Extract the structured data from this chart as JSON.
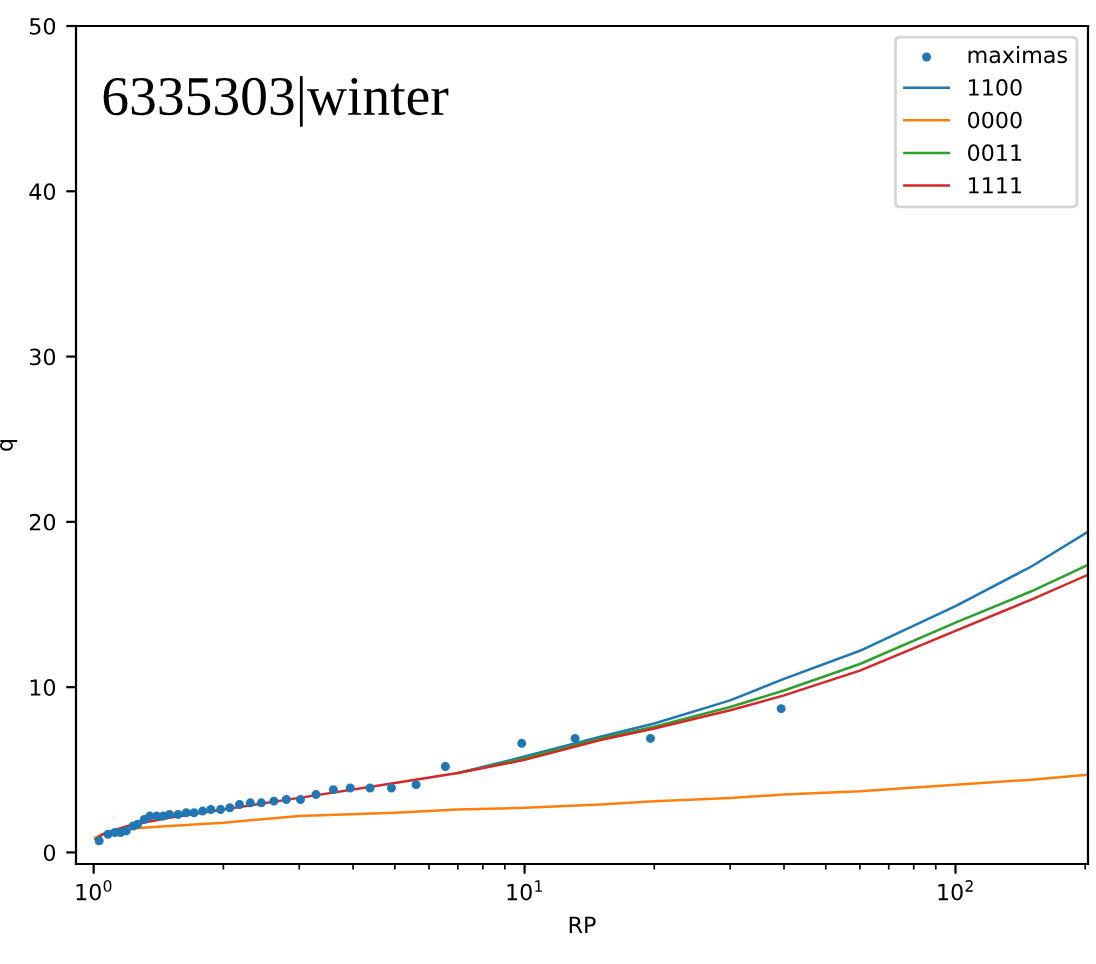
{
  "chart_data": {
    "type": "line",
    "xlabel": "RP",
    "ylabel": "q",
    "log": "x",
    "xlim": [
      0.91,
      203
    ],
    "xticks": [
      {
        "value": 1,
        "label": "10$^{0}$"
      },
      {
        "value": 10,
        "label": "10$^{1}$"
      },
      {
        "value": 100,
        "label": "10$^{2}$"
      }
    ],
    "ylim": [
      -0.7,
      50
    ],
    "yticks": [
      0,
      10,
      20,
      30,
      40,
      50
    ],
    "grid": false,
    "legend": "top right",
    "annotations": [
      "6335303|winter"
    ],
    "series": [
      {
        "name": "maximas",
        "type": "scatter",
        "marker": "circle",
        "color": "#1f77b4",
        "x": [
          1.03,
          1.08,
          1.12,
          1.155,
          1.19,
          1.235,
          1.265,
          1.31,
          1.35,
          1.4,
          1.45,
          1.5,
          1.57,
          1.64,
          1.71,
          1.79,
          1.87,
          1.97,
          2.07,
          2.18,
          2.31,
          2.45,
          2.62,
          2.8,
          3.02,
          3.28,
          3.6,
          3.94,
          4.38,
          4.91,
          5.6,
          6.55,
          9.85,
          13.1,
          19.6,
          39.4
        ],
        "values": [
          0.7,
          1.1,
          1.2,
          1.2,
          1.3,
          1.6,
          1.7,
          2.0,
          2.2,
          2.2,
          2.2,
          2.3,
          2.3,
          2.4,
          2.4,
          2.5,
          2.6,
          2.6,
          2.7,
          2.9,
          3.0,
          3.0,
          3.1,
          3.2,
          3.2,
          3.5,
          3.8,
          3.9,
          3.9,
          3.9,
          4.1,
          5.2,
          6.6,
          6.9,
          6.9,
          8.7
        ]
      },
      {
        "name": "1100",
        "color": "#1f77b4",
        "x": [
          7,
          10,
          15,
          20,
          30,
          40,
          60,
          100,
          150,
          203
        ],
        "values": [
          4.8,
          5.8,
          7.0,
          7.8,
          9.2,
          10.5,
          12.2,
          14.9,
          17.3,
          19.4
        ]
      },
      {
        "name": "0000",
        "color": "#ff7f0e",
        "x": [
          1.01,
          1.05,
          1.1,
          1.2,
          1.3,
          1.5,
          2,
          3,
          5,
          7,
          10,
          15,
          20,
          30,
          40,
          60,
          100,
          150,
          203
        ],
        "values": [
          0.9,
          1.1,
          1.2,
          1.4,
          1.5,
          1.6,
          1.8,
          2.2,
          2.4,
          2.6,
          2.7,
          2.9,
          3.1,
          3.3,
          3.5,
          3.7,
          4.1,
          4.4,
          4.7
        ]
      },
      {
        "name": "0011",
        "color": "#2ca02c",
        "x": [
          7,
          10,
          15,
          20,
          30,
          40,
          60,
          100,
          150,
          203
        ],
        "values": [
          4.8,
          5.7,
          6.9,
          7.6,
          8.8,
          9.8,
          11.4,
          13.9,
          15.8,
          17.4
        ]
      },
      {
        "name": "1111",
        "color": "#d62728",
        "x": [
          1.01,
          1.05,
          1.1,
          1.2,
          1.3,
          1.5,
          2,
          3,
          5,
          7,
          10,
          15,
          20,
          30,
          40,
          60,
          100,
          150,
          203
        ],
        "values": [
          0.8,
          1.1,
          1.3,
          1.6,
          1.8,
          2.1,
          2.6,
          3.3,
          4.2,
          4.8,
          5.6,
          6.8,
          7.5,
          8.6,
          9.5,
          11.0,
          13.4,
          15.3,
          16.8
        ]
      }
    ]
  }
}
